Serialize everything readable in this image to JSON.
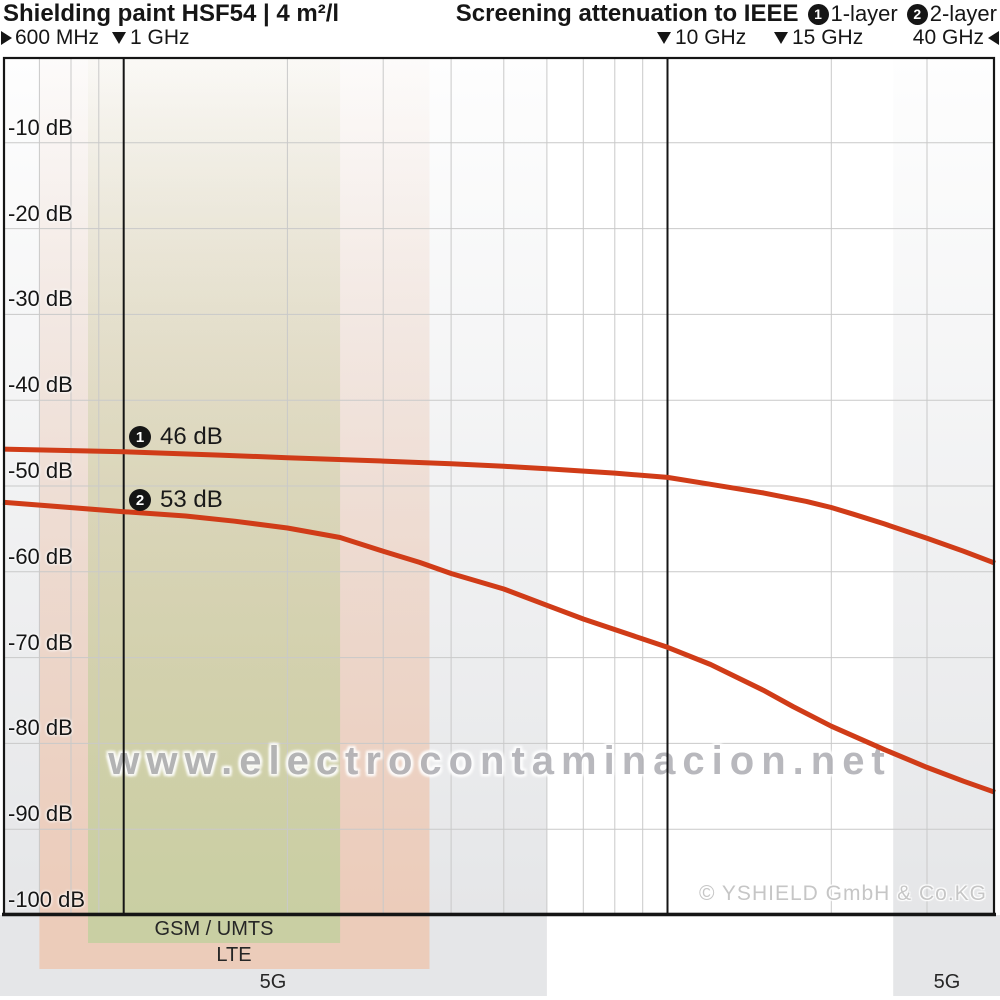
{
  "header": {
    "title_left": "Shielding paint HSF54 | 4 m²/l",
    "title_right": "Screening attenuation to IEEE",
    "legend": [
      {
        "symbol": "1",
        "label": "1-layer"
      },
      {
        "symbol": "2",
        "label": "2-layer"
      }
    ],
    "freq_markers": [
      {
        "label": "600 MHz",
        "icon": "triangle-right",
        "ghz": 0.6
      },
      {
        "label": "1 GHz",
        "icon": "triangle-down",
        "ghz": 1
      },
      {
        "label": "10 GHz",
        "icon": "triangle-down",
        "ghz": 10
      },
      {
        "label": "15 GHz",
        "icon": "triangle-down",
        "ghz": 15
      },
      {
        "label": "40 GHz",
        "icon": "triangle-left",
        "ghz": 40
      }
    ]
  },
  "watermark": "www.electrocontaminacion.net",
  "copyright": "© YSHIELD GmbH & Co.KG",
  "colors": {
    "curve": "#d03c18",
    "grid_minor": "#c9c9c9",
    "axis": "#151515",
    "band_5g": "#e5e6e8",
    "band_lte": "#ecccba",
    "band_gsm": "#c9cfa3"
  },
  "chart_data": {
    "type": "line",
    "title": "Screening attenuation to IEEE — Shielding paint HSF54, 4 m²/l",
    "x_axis": {
      "scale": "log",
      "unit": "GHz",
      "min_ghz": 0.6,
      "max_ghz": 40,
      "major_gridlines_ghz": [
        1,
        10
      ],
      "minor_gridlines_ghz": [
        0.7,
        0.8,
        0.9,
        2,
        3,
        4,
        5,
        6,
        7,
        8,
        9,
        20,
        30
      ]
    },
    "y_axis": {
      "unit": "dB",
      "min": -100,
      "max": 0,
      "tick_step": 10,
      "tick_labels": [
        "-10 dB",
        "-20 dB",
        "-30 dB",
        "-40 dB",
        "-50 dB",
        "-60 dB",
        "-70 dB",
        "-80 dB",
        "-90 dB",
        "-100 dB"
      ]
    },
    "series": [
      {
        "name": "1-layer",
        "symbol": "1",
        "annotation": {
          "text": "46 dB",
          "ghz": 1.07,
          "db": -44.2
        },
        "points_ghz_db": [
          [
            0.6,
            -45.7
          ],
          [
            1,
            -46
          ],
          [
            1.5,
            -46.4
          ],
          [
            2,
            -46.7
          ],
          [
            3,
            -47.1
          ],
          [
            4,
            -47.4
          ],
          [
            5,
            -47.7
          ],
          [
            6,
            -48
          ],
          [
            8,
            -48.5
          ],
          [
            10,
            -49
          ],
          [
            12,
            -49.8
          ],
          [
            15,
            -50.8
          ],
          [
            18,
            -51.8
          ],
          [
            20,
            -52.5
          ],
          [
            22,
            -53.3
          ],
          [
            25,
            -54.4
          ],
          [
            30,
            -56.1
          ],
          [
            35,
            -57.6
          ],
          [
            40,
            -59
          ]
        ]
      },
      {
        "name": "2-layer",
        "symbol": "2",
        "annotation": {
          "text": "53 dB",
          "ghz": 1.07,
          "db": -51.5
        },
        "points_ghz_db": [
          [
            0.6,
            -51.9
          ],
          [
            1,
            -53
          ],
          [
            1.3,
            -53.5
          ],
          [
            1.6,
            -54.1
          ],
          [
            2,
            -54.9
          ],
          [
            2.5,
            -56
          ],
          [
            3,
            -57.6
          ],
          [
            3.5,
            -58.9
          ],
          [
            4,
            -60.2
          ],
          [
            5,
            -62
          ],
          [
            6,
            -63.9
          ],
          [
            7,
            -65.5
          ],
          [
            8.5,
            -67.3
          ],
          [
            10,
            -68.8
          ],
          [
            12,
            -70.8
          ],
          [
            15,
            -73.8
          ],
          [
            17,
            -75.7
          ],
          [
            20,
            -78
          ],
          [
            25,
            -80.7
          ],
          [
            30,
            -82.8
          ],
          [
            35,
            -84.4
          ],
          [
            40,
            -85.7
          ]
        ]
      }
    ],
    "bands": [
      {
        "label": "5G",
        "from_ghz": 0.6,
        "to_ghz": 6.0,
        "color": "#e5e6e8",
        "label_row": 3
      },
      {
        "label": "LTE",
        "from_ghz": 0.7,
        "to_ghz": 3.65,
        "color": "#ecccba",
        "label_row": 2
      },
      {
        "label": "GSM / UMTS",
        "from_ghz": 0.86,
        "to_ghz": 2.5,
        "color": "#c9cfa3",
        "label_row": 1
      },
      {
        "label": "5G",
        "from_ghz": 26,
        "to_ghz": 40,
        "color": "#e5e6e8",
        "label_row": 3
      }
    ]
  }
}
